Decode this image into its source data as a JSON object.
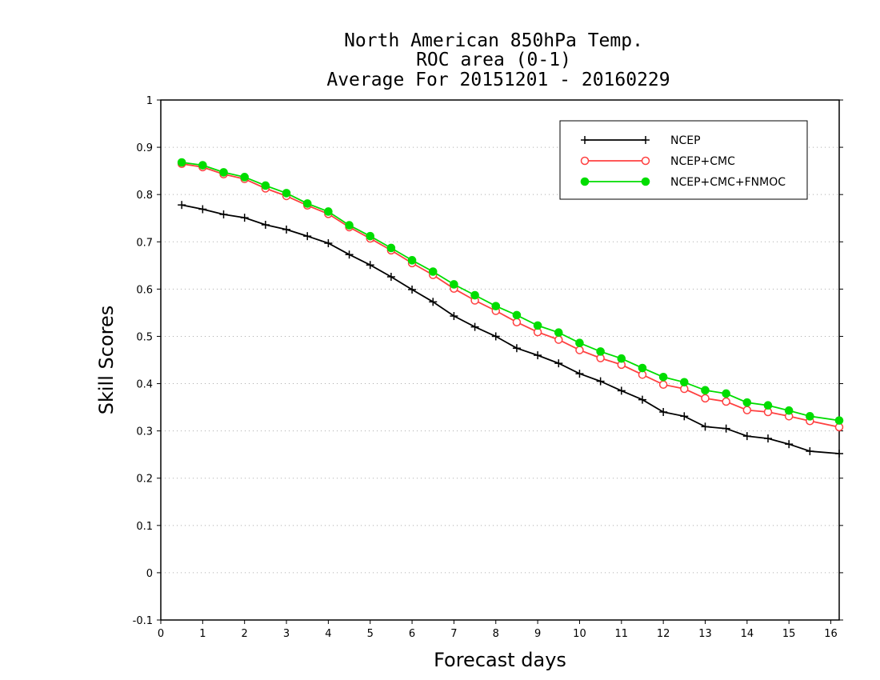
{
  "chart_data": {
    "type": "line",
    "title_lines": [
      "North American 850hPa Temp.",
      "ROC area (0-1)",
      "Average For 20151201 - 20160229"
    ],
    "xlabel": "Forecast days",
    "ylabel": "Skill Scores",
    "xlim": [
      0,
      16.2
    ],
    "ylim": [
      -0.1,
      1
    ],
    "xticks": [
      0,
      1,
      2,
      3,
      4,
      5,
      6,
      7,
      8,
      9,
      10,
      11,
      12,
      13,
      14,
      15,
      16
    ],
    "xtick_labels": [
      "0",
      "1",
      "2",
      "3",
      "4",
      "5",
      "6",
      "7",
      "8",
      "9",
      "10",
      "11",
      "12",
      "13",
      "14",
      "15",
      "16"
    ],
    "yticks": [
      -0.1,
      0,
      0.1,
      0.2,
      0.3,
      0.4,
      0.5,
      0.6,
      0.7,
      0.8,
      0.9,
      1
    ],
    "ytick_labels": [
      "-0.1",
      "0",
      "0.1",
      "0.2",
      "0.3",
      "0.4",
      "0.5",
      "0.6",
      "0.7",
      "0.8",
      "0.9",
      "1"
    ],
    "grid": "horizontal-dotted",
    "legend_position": "top-right",
    "x": [
      0.5,
      1,
      1.5,
      2,
      2.5,
      3,
      3.5,
      4,
      4.5,
      5,
      5.5,
      6,
      6.5,
      7,
      7.5,
      8,
      8.5,
      9,
      9.5,
      10,
      10.5,
      11,
      11.5,
      12,
      12.5,
      13,
      13.5,
      14,
      14.5,
      15,
      15.5,
      16.2
    ],
    "series": [
      {
        "name": "NCEP",
        "color": "#000000",
        "marker": "plus",
        "values": [
          0.778,
          0.769,
          0.758,
          0.751,
          0.736,
          0.726,
          0.712,
          0.697,
          0.673,
          0.651,
          0.626,
          0.599,
          0.573,
          0.543,
          0.52,
          0.5,
          0.475,
          0.46,
          0.443,
          0.421,
          0.405,
          0.385,
          0.366,
          0.34,
          0.331,
          0.309,
          0.305,
          0.289,
          0.284,
          0.272,
          0.257,
          0.252
        ]
      },
      {
        "name": "NCEP+CMC",
        "color": "#ff4040",
        "marker": "open-circle",
        "values": [
          0.865,
          0.858,
          0.843,
          0.833,
          0.813,
          0.797,
          0.777,
          0.759,
          0.731,
          0.707,
          0.682,
          0.655,
          0.63,
          0.601,
          0.576,
          0.554,
          0.53,
          0.509,
          0.493,
          0.471,
          0.454,
          0.44,
          0.419,
          0.398,
          0.389,
          0.369,
          0.362,
          0.344,
          0.34,
          0.331,
          0.321,
          0.308
        ]
      },
      {
        "name": "NCEP+CMC+FNMOC",
        "color": "#00dd00",
        "marker": "filled-circle",
        "values": [
          0.868,
          0.862,
          0.847,
          0.837,
          0.819,
          0.803,
          0.781,
          0.764,
          0.735,
          0.712,
          0.687,
          0.661,
          0.637,
          0.61,
          0.587,
          0.564,
          0.545,
          0.523,
          0.508,
          0.486,
          0.468,
          0.453,
          0.433,
          0.414,
          0.403,
          0.386,
          0.379,
          0.36,
          0.354,
          0.343,
          0.331,
          0.322
        ]
      }
    ]
  }
}
